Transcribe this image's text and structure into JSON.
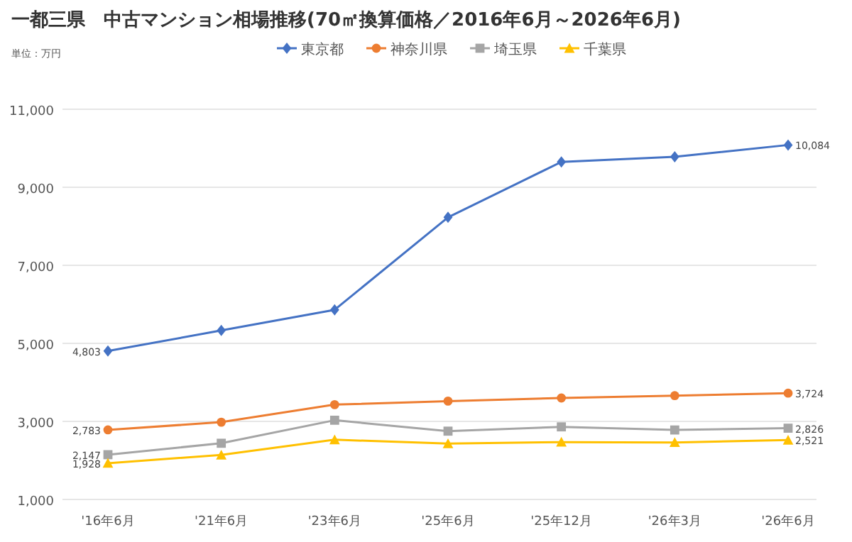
{
  "chart_data": {
    "type": "line",
    "title": "一都三県　中古マンション相場推移(70㎡換算価格／2016年6月～2026年6月)",
    "annotations": [
      "単位：万円"
    ],
    "categories": [
      "'16年6月",
      "'21年6月",
      "'23年6月",
      "'25年6月",
      "'25年12月",
      "'26年3月",
      "'26年6月"
    ],
    "series": [
      {
        "name": "東京都",
        "color": "#4472c4",
        "marker": "diamond",
        "values": [
          4803,
          5330,
          5860,
          8230,
          9650,
          9780,
          10084
        ],
        "value_labels": [
          "4,803",
          null,
          null,
          null,
          null,
          null,
          "10,084"
        ]
      },
      {
        "name": "神奈川県",
        "color": "#ed7d31",
        "marker": "circle",
        "values": [
          2783,
          2980,
          3430,
          3520,
          3600,
          3660,
          3724
        ],
        "value_labels": [
          "2,783",
          null,
          null,
          null,
          null,
          null,
          "3,724"
        ]
      },
      {
        "name": "埼玉県",
        "color": "#a5a5a5",
        "marker": "square",
        "values": [
          2147,
          2440,
          3030,
          2750,
          2860,
          2780,
          2826
        ],
        "value_labels": [
          "2,147",
          null,
          null,
          null,
          null,
          null,
          "2,826"
        ]
      },
      {
        "name": "千葉県",
        "color": "#ffc000",
        "marker": "triangle",
        "values": [
          1928,
          2140,
          2530,
          2430,
          2470,
          2460,
          2521
        ],
        "value_labels": [
          "1,928",
          null,
          null,
          null,
          null,
          null,
          "2,521"
        ]
      }
    ],
    "ylim": [
      1000,
      11000
    ],
    "yticks": [
      {
        "value": 1000,
        "label": "1,000"
      },
      {
        "value": 3000,
        "label": "3,000"
      },
      {
        "value": 5000,
        "label": "5,000"
      },
      {
        "value": 7000,
        "label": "7,000"
      },
      {
        "value": 9000,
        "label": "9,000"
      },
      {
        "value": 11000,
        "label": "11,000"
      }
    ],
    "grid": "y",
    "legend": "top",
    "line_style": "solid"
  }
}
